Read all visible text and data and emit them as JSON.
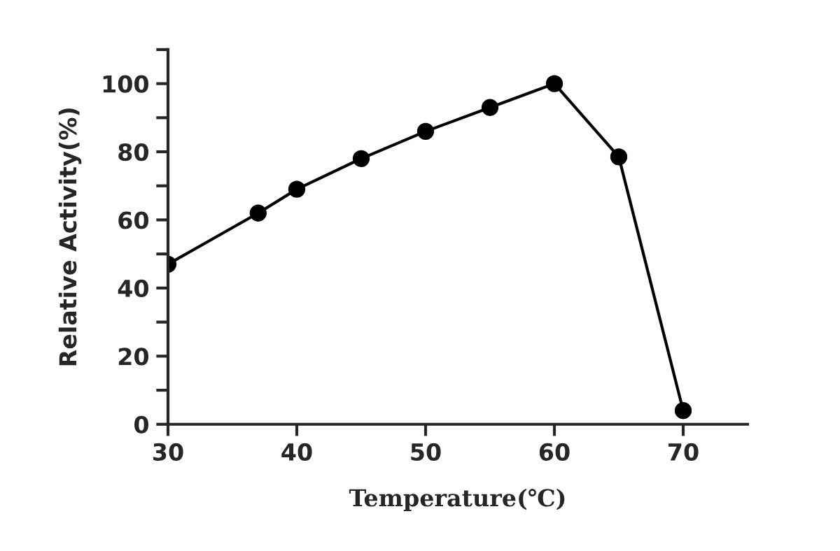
{
  "chart_data": {
    "type": "line",
    "xlabel": "Temperature(℃)",
    "ylabel": "Relative Activity(%)",
    "x": [
      30,
      37,
      40,
      45,
      50,
      55,
      60,
      65,
      70
    ],
    "series": [
      {
        "color": "#000000",
        "values": [
          47,
          62,
          69,
          78,
          86,
          93,
          100,
          78.5,
          4
        ]
      }
    ],
    "xlim": [
      30,
      75
    ],
    "xticks": [
      30,
      40,
      50,
      60,
      70
    ],
    "ylim": [
      0,
      110
    ],
    "yticks": [
      0,
      {
        "value": 10,
        "label": null
      },
      20,
      {
        "value": 30,
        "label": null
      },
      40,
      {
        "value": 50,
        "label": null
      },
      60,
      {
        "value": 70,
        "label": null
      },
      80,
      {
        "value": 90,
        "label": null
      },
      100,
      {
        "value": 110,
        "label": null
      }
    ],
    "marker": "circle",
    "line_style": "solid",
    "grid": false,
    "legend": false
  }
}
